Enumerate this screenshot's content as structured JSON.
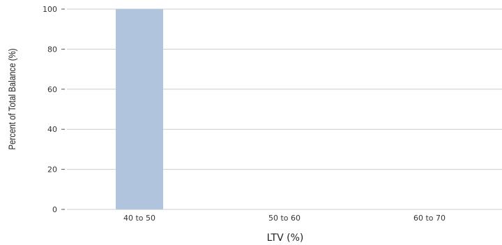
{
  "chart_data": {
    "type": "bar",
    "categories": [
      "40 to 50",
      "50 to 60",
      "60 to 70"
    ],
    "values": [
      100,
      0,
      0
    ],
    "xlabel": "LTV (%)",
    "ylabel": "Percent of Total Balance (%)",
    "ylim": [
      0,
      100
    ],
    "yticks": [
      0,
      20,
      40,
      60,
      80,
      100
    ],
    "grid": true,
    "bar_color": "#b0c4de"
  }
}
